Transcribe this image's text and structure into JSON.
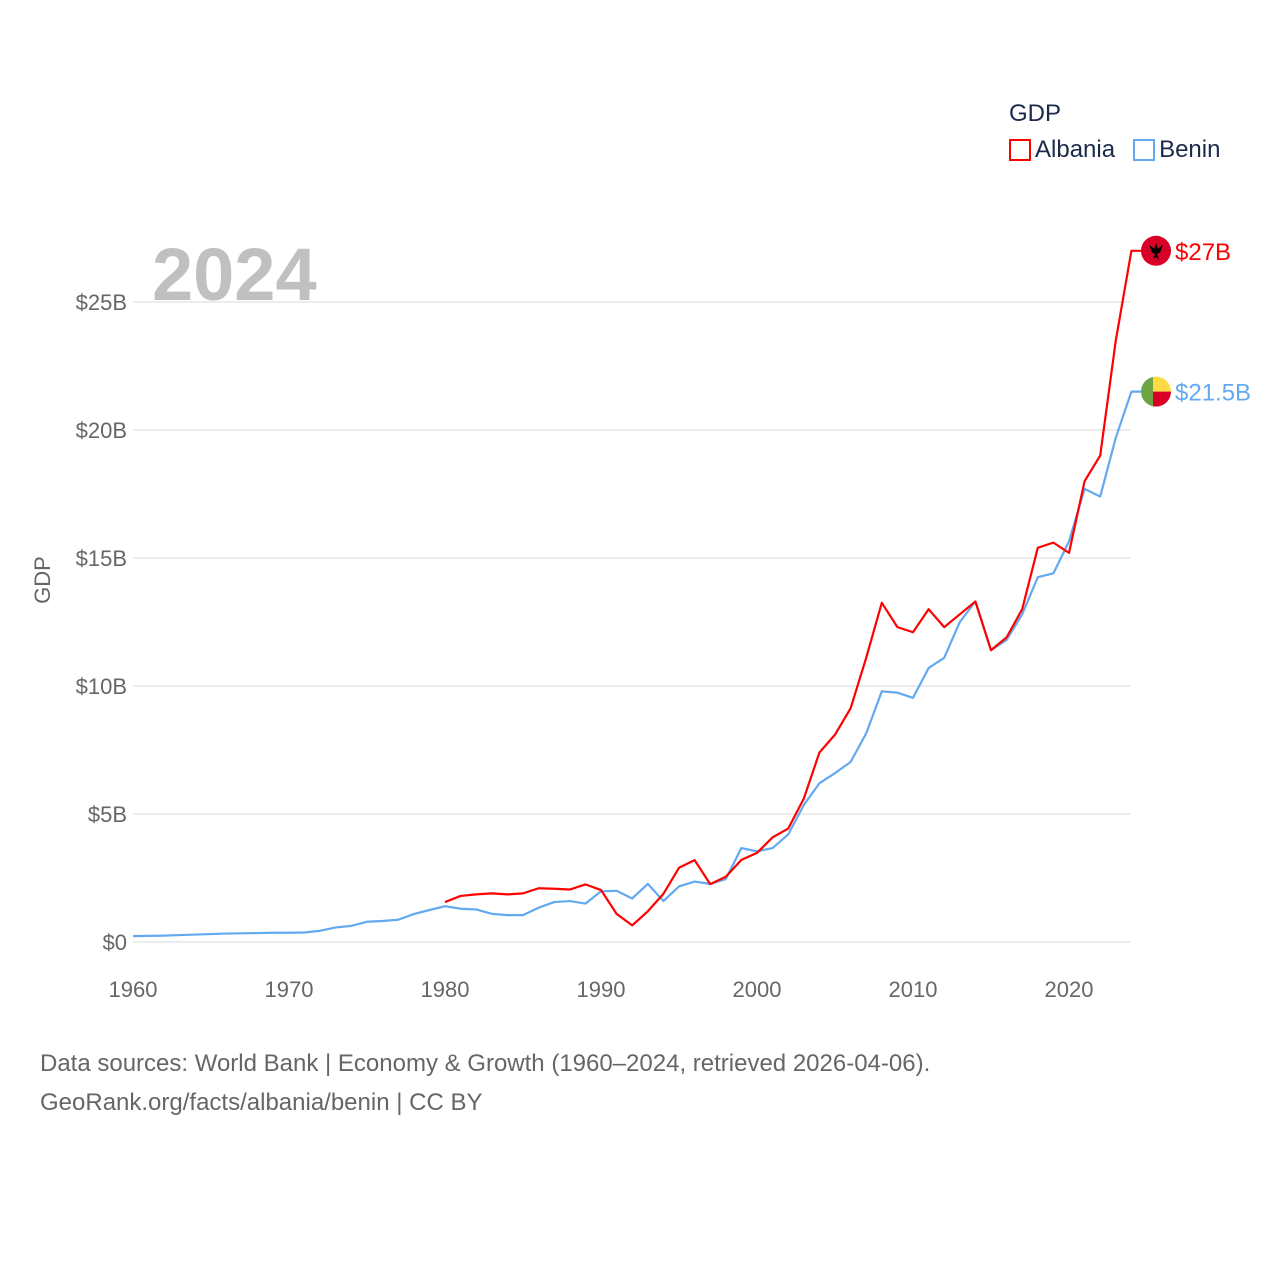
{
  "chart_data": {
    "type": "line",
    "title": "GDP",
    "year_label": "2024",
    "ylabel": "GDP",
    "xlabel": "",
    "xlim": [
      1960,
      2024
    ],
    "ylim": [
      0,
      25
    ],
    "x_ticks": [
      "1960",
      "1970",
      "1980",
      "1990",
      "2000",
      "2010",
      "2020"
    ],
    "y_ticks": [
      "$0",
      "$5B",
      "$10B",
      "$15B",
      "$20B",
      "$25B"
    ],
    "y_tick_values": [
      0,
      5,
      10,
      15,
      20,
      25
    ],
    "grid": true,
    "legend_position": "top-right",
    "units": "billion USD",
    "series": [
      {
        "name": "Albania",
        "color": "#ff0000",
        "end_label": "$27B",
        "flag": "albania-flag",
        "start_year": 1980,
        "values": [
          1.56,
          1.8,
          1.86,
          1.9,
          1.86,
          1.9,
          2.1,
          2.08,
          2.05,
          2.25,
          2.03,
          1.1,
          0.65,
          1.2,
          1.88,
          2.9,
          3.2,
          2.26,
          2.55,
          3.21,
          3.48,
          4.09,
          4.43,
          5.6,
          7.4,
          8.1,
          9.13,
          11.1,
          13.25,
          12.3,
          12.1,
          13.0,
          12.3,
          12.8,
          13.3,
          11.4,
          11.9,
          13.0,
          15.4,
          15.6,
          15.2,
          18.0,
          19.0,
          23.5,
          27.0
        ]
      },
      {
        "name": "Benin",
        "color": "#63a9f0",
        "end_label": "$21.5B",
        "flag": "benin-flag",
        "start_year": 1960,
        "values": [
          0.23,
          0.24,
          0.25,
          0.27,
          0.29,
          0.31,
          0.33,
          0.34,
          0.35,
          0.36,
          0.36,
          0.37,
          0.44,
          0.57,
          0.63,
          0.79,
          0.82,
          0.87,
          1.09,
          1.25,
          1.4,
          1.3,
          1.27,
          1.1,
          1.05,
          1.05,
          1.34,
          1.56,
          1.6,
          1.5,
          1.98,
          2.0,
          1.7,
          2.27,
          1.6,
          2.17,
          2.36,
          2.27,
          2.46,
          3.67,
          3.54,
          3.67,
          4.2,
          5.35,
          6.2,
          6.6,
          7.03,
          8.15,
          9.79,
          9.74,
          9.54,
          10.7,
          11.1,
          12.5,
          13.3,
          11.4,
          11.8,
          12.8,
          14.25,
          14.4,
          15.65,
          17.7,
          17.4,
          19.7,
          21.5
        ]
      }
    ]
  },
  "footer": {
    "line1": "Data sources: World Bank | Economy & Growth (1960–2024, retrieved 2026-04-06).",
    "line2": "GeoRank.org/facts/albania/benin | CC BY"
  }
}
